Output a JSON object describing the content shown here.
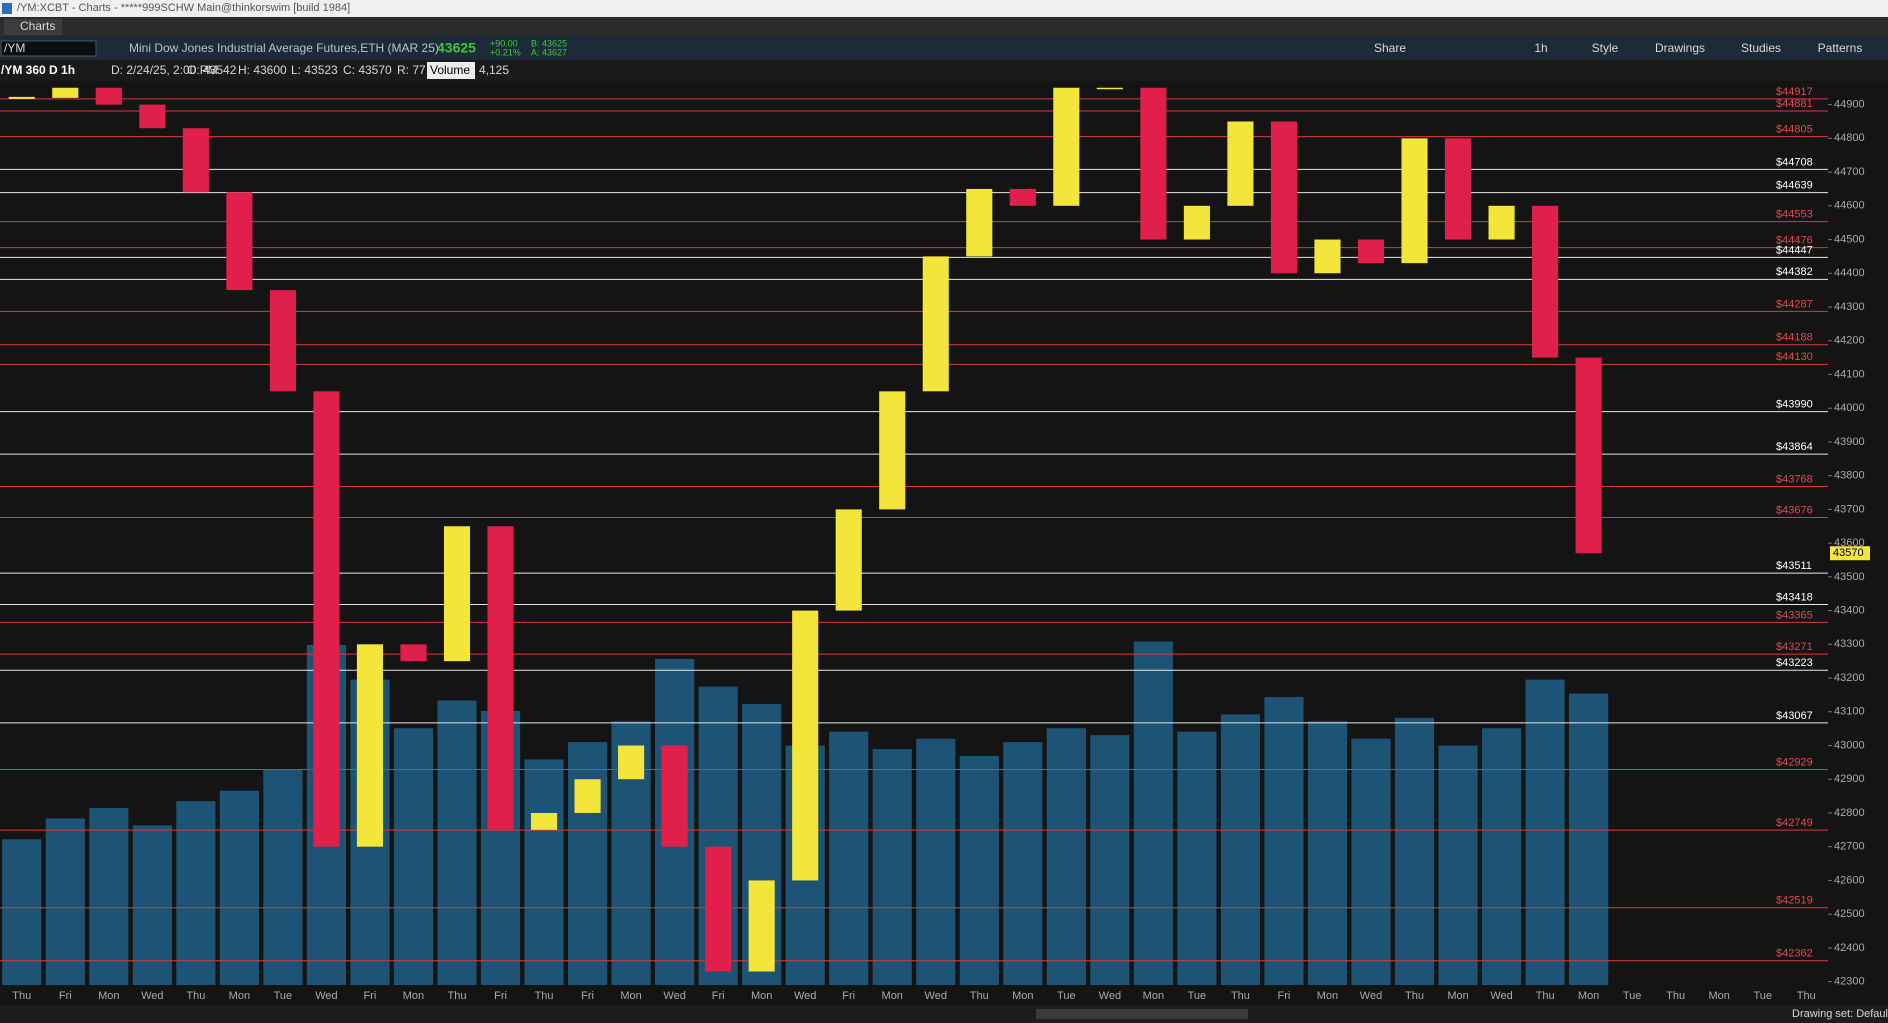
{
  "window": {
    "title": "/YM:XCBT - Charts - *****999SCHW Main@thinkorswim [build 1984]",
    "tab": "Charts"
  },
  "toolbar": {
    "symbol": "/YM",
    "description": "Mini Dow Jones Industrial Average Futures,ETH (MAR 25)",
    "last": "43625",
    "change": "+90.00",
    "change_pct": "+0.21%",
    "bid": "B: 43625",
    "ask": "A: 43627",
    "buttons": [
      "Share",
      "1h",
      "Style",
      "Drawings",
      "Studies",
      "Patterns"
    ]
  },
  "info_bar": {
    "chart": "/YM 360 D 1h",
    "date": "D: 2/24/25, 2:00 PM",
    "open": "O: 43542",
    "high": "H: 43600",
    "low": "L: 43523",
    "close": "C: 43570",
    "range": "R: 77",
    "study": "Volume",
    "study_value": "4,125"
  },
  "status_bar": {
    "drawing_set": "Drawing set: Default"
  },
  "chart_data": {
    "type": "candlestick",
    "categories": [
      "Thu",
      "Fri",
      "Mon",
      "Wed",
      "Thu",
      "Mon",
      "Tue",
      "Wed",
      "Fri",
      "Mon",
      "Thu",
      "Fri",
      "Thu",
      "Fri",
      "Mon",
      "Wed",
      "Fri",
      "Mon",
      "Wed",
      "Fri",
      "Mon",
      "Wed",
      "Thu",
      "Mon",
      "Tue",
      "Wed",
      "Mon",
      "Tue",
      "Thu",
      "Fri",
      "Mon",
      "Wed",
      "Thu",
      "Mon",
      "Wed",
      "Thu",
      "Mon",
      "Tue",
      "Thu",
      "Mon",
      "Tue",
      "Thu"
    ],
    "series": [
      {
        "name": "/YM",
        "up_color": "#f3e53a",
        "down_color": "#e0204a",
        "values": [
          44920,
          44950,
          44900,
          44830,
          44640,
          44350,
          44050,
          42700,
          43300,
          43250,
          43650,
          42750,
          42800,
          42900,
          43000,
          42700,
          42330,
          42600,
          43400,
          43700,
          44050,
          44450,
          44650,
          44600,
          44950,
          44950,
          44500,
          44600,
          44850,
          44400,
          44500,
          44430,
          44800,
          44500,
          44600,
          44150,
          43570,
          null,
          null,
          null,
          null,
          null
        ]
      }
    ],
    "volume": {
      "name": "Volume",
      "color": "#1f5f86",
      "values": [
        4200,
        4800,
        5100,
        4600,
        5300,
        5600,
        6200,
        9800,
        8800,
        7400,
        8200,
        7900,
        6500,
        7000,
        7600,
        9400,
        8600,
        8100,
        6900,
        7300,
        6800,
        7100,
        6600,
        7000,
        7400,
        7200,
        9900,
        7300,
        7800,
        8300,
        7600,
        7100,
        7700,
        6900,
        7400,
        8800,
        8400,
        null,
        null,
        null,
        null,
        null
      ]
    },
    "ylim": [
      42290,
      44970
    ],
    "yticks": [
      42300,
      42400,
      42500,
      42600,
      42700,
      42800,
      42900,
      43000,
      43100,
      43200,
      43300,
      43400,
      43500,
      43600,
      43700,
      43800,
      43900,
      44000,
      44100,
      44200,
      44300,
      44400,
      44500,
      44600,
      44700,
      44800,
      44900
    ],
    "last_price": 43570,
    "last_color": "#f3e53a",
    "levels": [
      {
        "value": 44917,
        "label": "$44917",
        "color": "#d83a3a"
      },
      {
        "value": 44881,
        "label": "$44881",
        "color": "#d83a3a"
      },
      {
        "value": 44805,
        "label": "$44805",
        "color": "#d83a3a"
      },
      {
        "value": 44708,
        "label": "$44708",
        "color": "#e6e6e6"
      },
      {
        "value": 44639,
        "label": "$44639",
        "color": "#e6e6e6"
      },
      {
        "value": 44553,
        "label": "$44553",
        "color": "#d83a3a"
      },
      {
        "value": 44476,
        "label": "$44476",
        "color": "#d83a3a"
      },
      {
        "value": 44447,
        "label": "$44447",
        "color": "#e6e6e6"
      },
      {
        "value": 44382,
        "label": "$44382",
        "color": "#e6e6e6"
      },
      {
        "value": 44287,
        "label": "$44287",
        "color": "#d83a3a"
      },
      {
        "value": 44188,
        "label": "$44188",
        "color": "#d83a3a"
      },
      {
        "value": 44130,
        "label": "$44130",
        "color": "#d83a3a"
      },
      {
        "value": 43990,
        "label": "$43990",
        "color": "#e6e6e6"
      },
      {
        "value": 43864,
        "label": "$43864",
        "color": "#e6e6e6"
      },
      {
        "value": 43768,
        "label": "$43768",
        "color": "#d83a3a"
      },
      {
        "value": 43676,
        "label": "$43676",
        "color": "#d83a3a"
      },
      {
        "value": 43511,
        "label": "$43511",
        "color": "#e6e6e6"
      },
      {
        "value": 43418,
        "label": "$43418",
        "color": "#e6e6e6"
      },
      {
        "value": 43365,
        "label": "$43365",
        "color": "#d83a3a"
      },
      {
        "value": 43271,
        "label": "$43271",
        "color": "#d83a3a"
      },
      {
        "value": 43223,
        "label": "$43223",
        "color": "#e6e6e6"
      },
      {
        "value": 43067,
        "label": "$43067",
        "color": "#e6e6e6"
      },
      {
        "value": 42929,
        "label": "$42929",
        "color": "#d83a3a"
      },
      {
        "value": 42749,
        "label": "$42749",
        "color": "#d83a3a"
      },
      {
        "value": 42519,
        "label": "$42519",
        "color": "#d83a3a"
      },
      {
        "value": 42362,
        "label": "$42362",
        "color": "#d83a3a"
      }
    ]
  }
}
